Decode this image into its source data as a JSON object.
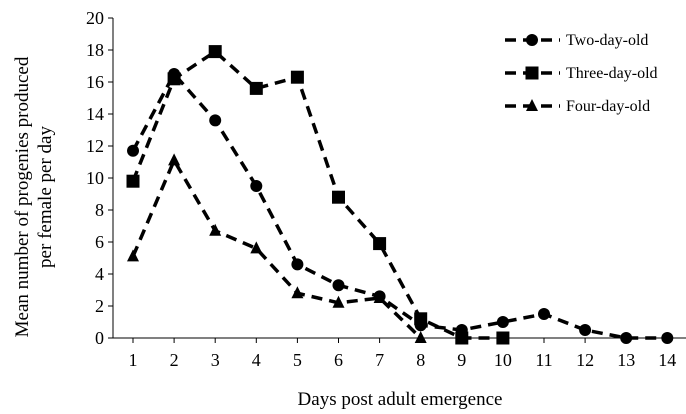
{
  "chart_data": {
    "type": "line",
    "xlabel": "Days post adult emergence",
    "ylabel_line1": "Mean number of progenies produced",
    "ylabel_line2": "per  female per day",
    "xlim": [
      1,
      14
    ],
    "ylim": [
      0,
      20
    ],
    "x_ticks": [
      1,
      2,
      3,
      4,
      5,
      6,
      7,
      8,
      9,
      10,
      11,
      12,
      13,
      14
    ],
    "y_ticks": [
      0,
      2,
      4,
      6,
      8,
      10,
      12,
      14,
      16,
      18,
      20
    ],
    "grid": false,
    "legend_position": "top-right",
    "series": [
      {
        "name": "Two-day-old",
        "marker": "circle",
        "line_style": "dashed",
        "color": "#000000",
        "x": [
          1,
          2,
          3,
          4,
          5,
          6,
          7,
          8,
          9,
          10,
          11,
          12,
          13,
          14
        ],
        "y": [
          11.7,
          16.5,
          13.6,
          9.5,
          4.6,
          3.3,
          2.6,
          0.8,
          0.5,
          1.0,
          1.5,
          0.5,
          0.0,
          0.0
        ]
      },
      {
        "name": "Three-day-old",
        "marker": "square",
        "line_style": "dashed",
        "color": "#000000",
        "x": [
          1,
          2,
          3,
          4,
          5,
          6,
          7,
          8,
          9,
          10
        ],
        "y": [
          9.8,
          16.2,
          17.9,
          15.6,
          16.3,
          8.8,
          5.9,
          1.2,
          0.0,
          0.0
        ]
      },
      {
        "name": "Four-day-old",
        "marker": "triangle",
        "line_style": "dashed",
        "color": "#000000",
        "x": [
          1,
          2,
          3,
          4,
          5,
          6,
          7,
          8
        ],
        "y": [
          5.1,
          11.1,
          6.7,
          5.6,
          2.8,
          2.2,
          2.5,
          0.0
        ]
      }
    ]
  }
}
